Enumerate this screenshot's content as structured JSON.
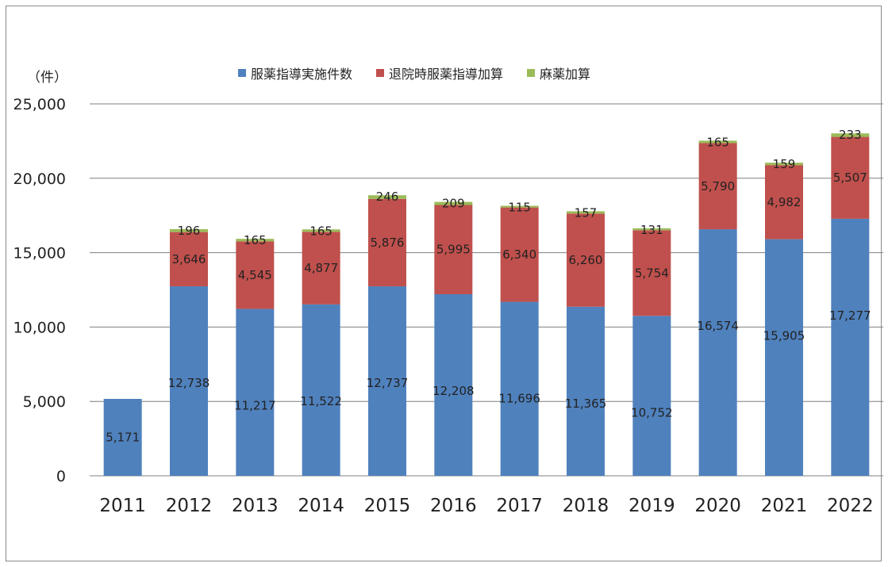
{
  "chart_data": {
    "type": "bar",
    "stacked": true,
    "unit_label": "（件）",
    "categories": [
      "2011",
      "2012",
      "2013",
      "2014",
      "2015",
      "2016",
      "2017",
      "2018",
      "2019",
      "2020",
      "2021",
      "2022"
    ],
    "series": [
      {
        "name": "服薬指導実施件数",
        "color": "#4f81bd",
        "values": [
          5171,
          12738,
          11217,
          11522,
          12737,
          12208,
          11696,
          11365,
          10752,
          16574,
          15905,
          17277
        ],
        "labels": [
          "5,171",
          "12,738",
          "11,217",
          "11,522",
          "12,737",
          "12,208",
          "11,696",
          "11,365",
          "10,752",
          "16,574",
          "15,905",
          "17,277"
        ]
      },
      {
        "name": "退院時服薬指導加算",
        "color": "#c0504d",
        "values": [
          0,
          3646,
          4545,
          4877,
          5876,
          5995,
          6340,
          6260,
          5754,
          5790,
          4982,
          5507
        ],
        "labels": [
          "",
          "3,646",
          "4,545",
          "4,877",
          "5,876",
          "5,995",
          "6,340",
          "6,260",
          "5,754",
          "5,790",
          "4,982",
          "5,507"
        ]
      },
      {
        "name": "麻薬加算",
        "color": "#9bbb59",
        "values": [
          0,
          196,
          165,
          165,
          246,
          209,
          115,
          157,
          131,
          165,
          159,
          233
        ],
        "labels": [
          "",
          "196",
          "165",
          "165",
          "246",
          "209",
          "115",
          "157",
          "131",
          "165",
          "159",
          "233"
        ]
      }
    ],
    "ylim": [
      0,
      25000
    ],
    "yticks": [
      0,
      5000,
      10000,
      15000,
      20000,
      25000
    ],
    "ytick_labels": [
      "0",
      "5,000",
      "10,000",
      "15,000",
      "20,000",
      "25,000"
    ],
    "grid": true,
    "legend_position": "top"
  }
}
